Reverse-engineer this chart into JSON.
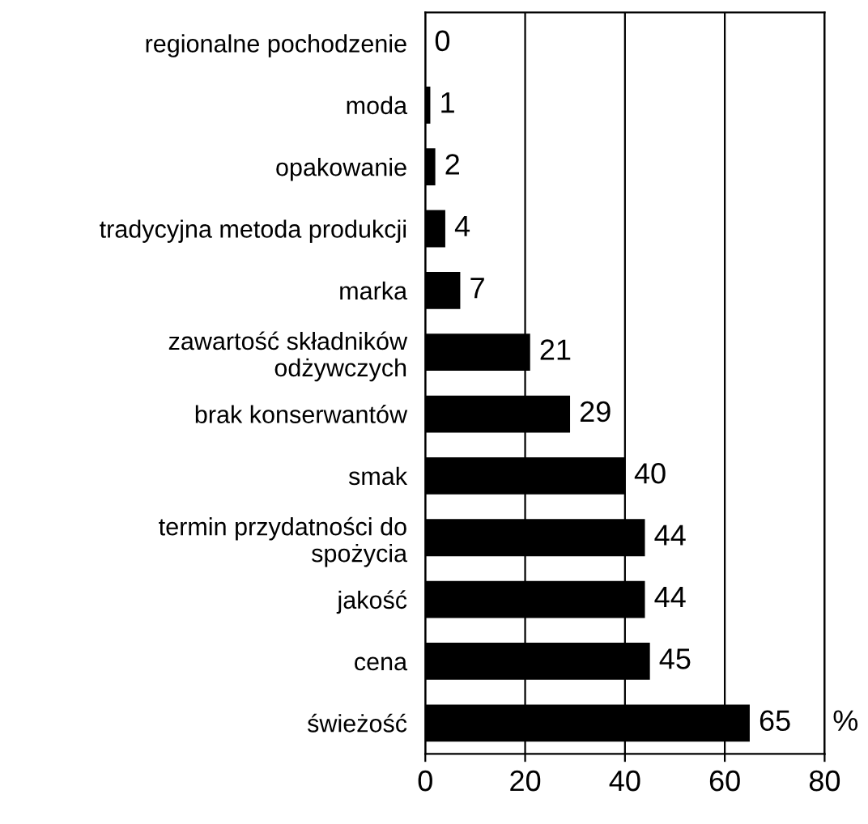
{
  "chart_data": {
    "type": "bar",
    "orientation": "horizontal",
    "categories": [
      "regionalne pochodzenie",
      "moda",
      "opakowanie",
      "tradycyjna metoda produkcji",
      "marka",
      "zawartość składników\nodżywczych",
      "brak konserwantów",
      "smak",
      "termin przydatności do\nspożycia",
      "jakość",
      "cena",
      "świeżość"
    ],
    "values": [
      0,
      1,
      2,
      4,
      7,
      21,
      29,
      40,
      44,
      44,
      45,
      65
    ],
    "color": "#000000",
    "xlim": [
      0,
      80
    ],
    "xticks": [
      0,
      20,
      40,
      60,
      80
    ],
    "xlabel": "%",
    "grid": "x",
    "data_labels": true
  }
}
